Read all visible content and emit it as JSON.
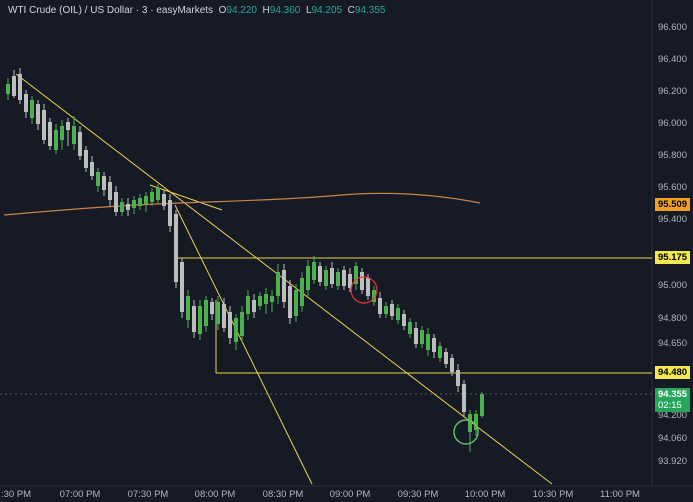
{
  "header": {
    "symbol": "WTI Crude (OIL) / US Dollar · 3 · easyMarkets",
    "o_label": "O",
    "o_value": "94.220",
    "h_label": "H",
    "h_value": "94.360",
    "l_label": "L",
    "l_value": "94.205",
    "c_label": "C",
    "c_value": "94.355"
  },
  "price_axis": [
    "96.600",
    "96.400",
    "96.200",
    "96.000",
    "95.800",
    "95.600",
    "95.400",
    "95.000",
    "94.800",
    "94.650",
    "94.200",
    "94.060",
    "93.920"
  ],
  "time_axis": [
    ":30 PM",
    "07:00 PM",
    "07:30 PM",
    "08:00 PM",
    "08:30 PM",
    "09:00 PM",
    "09:30 PM",
    "10:00 PM",
    "10:30 PM",
    "11:00 PM"
  ],
  "price_tags": {
    "ma": {
      "text": "95.509",
      "bg": "#f0a020",
      "fg": "#000000"
    },
    "resistance": {
      "text": "95.175",
      "bg": "#f2e94e",
      "fg": "#000000"
    },
    "support": {
      "text": "94.480",
      "bg": "#f2e94e",
      "fg": "#000000"
    },
    "current": {
      "text": "94.355",
      "timer": "02:15",
      "bg": "#26a65b",
      "fg": "#ffffff"
    }
  },
  "colors": {
    "up": "#4caf50",
    "down": "#bdbdbd",
    "trendline": "#e8d44d",
    "ma": "#c8864a",
    "bg": "#161a25"
  }
}
